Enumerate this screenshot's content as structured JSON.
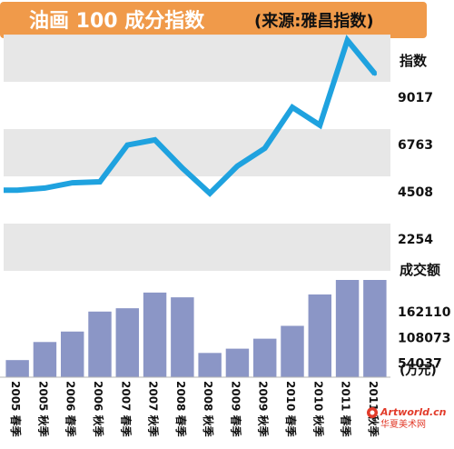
{
  "header": {
    "title": "油画 100 成分指数",
    "source": "(来源:雅昌指数)"
  },
  "colors": {
    "header_bar": "#f09a4a",
    "index_line": "#1fa2df",
    "bar_fill": "#8b96c6",
    "band": "#e7e7e7",
    "text": "#111111"
  },
  "chart_data": [
    {
      "type": "line",
      "title": "油画 100 成分指数",
      "ylabel": "指数",
      "yticks": [
        9017,
        6763,
        4508,
        2254
      ],
      "ylim": [
        0,
        11100
      ],
      "x": [
        "2005 春季",
        "2005 秋季",
        "2006 春季",
        "2006 秋季",
        "2007 春季",
        "2007 秋季",
        "2008 春季",
        "2008 秋季",
        "2009 春季",
        "2009 秋季",
        "2010 春季",
        "2010 秋季",
        "2011 春季",
        "2011 秋季"
      ],
      "series": [
        {
          "values": [
            3850,
            3950,
            4200,
            4250,
            6000,
            6250,
            4900,
            3700,
            5000,
            5850,
            7800,
            6950,
            11000,
            9400
          ]
        }
      ],
      "grid": "alternating horizontal bands"
    },
    {
      "type": "bar",
      "ylabel": "成交额",
      "unit": "(万元)",
      "yticks": [
        162110,
        108073,
        54037
      ],
      "ylim": [
        0,
        216000
      ],
      "categories": [
        "2005 春季",
        "2005 秋季",
        "2006 春季",
        "2006 秋季",
        "2007 春季",
        "2007 秋季",
        "2008 春季",
        "2008 秋季",
        "2009 春季",
        "2009 秋季",
        "2010 春季",
        "2010 秋季",
        "2011 春季",
        "2011 秋季"
      ],
      "values": [
        36000,
        74000,
        96000,
        138000,
        145000,
        178000,
        168000,
        51000,
        60000,
        81000,
        108000,
        174000,
        229000,
        212000
      ]
    }
  ],
  "watermark": {
    "site": "Artworld.cn",
    "name": "华夏美术网"
  }
}
